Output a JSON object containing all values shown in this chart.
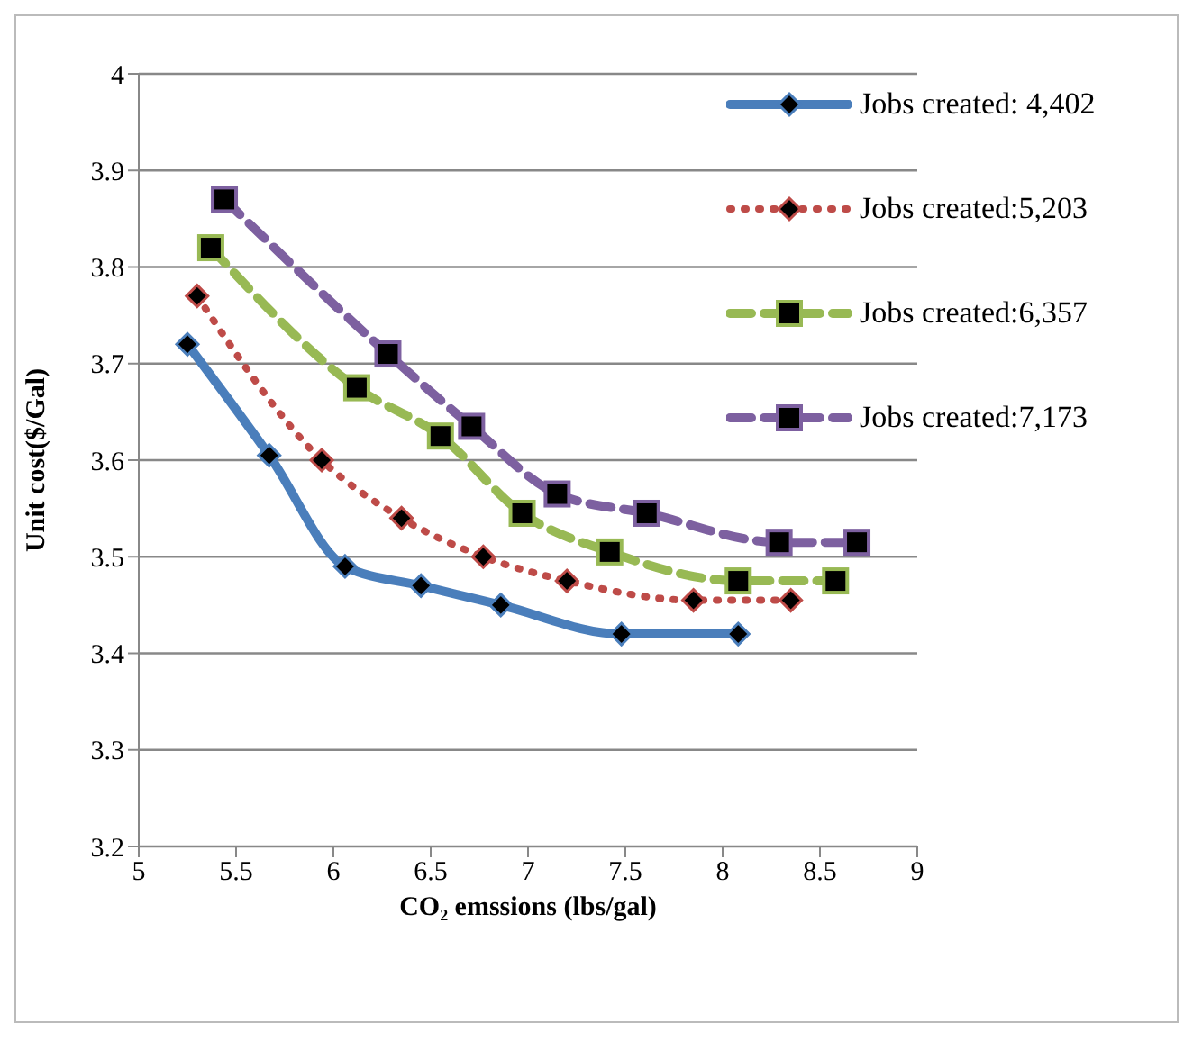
{
  "chart_data": {
    "type": "line",
    "xlabel": "CO₂ emssions (lbs/gal)",
    "ylabel": "Unit cost($/Gal)",
    "xlim": [
      5,
      9
    ],
    "xticks": [
      5,
      5.5,
      6,
      6.5,
      7,
      7.5,
      8,
      8.5,
      9
    ],
    "ylim": [
      3.2,
      4
    ],
    "yticks": [
      3.2,
      3.3,
      3.4,
      3.5,
      3.6,
      3.7,
      3.8,
      3.9,
      4
    ],
    "grid": "y",
    "legend": "top right",
    "series": [
      {
        "name": "Jobs created: 4,402",
        "color": "#4a7ebb",
        "line_style": "solid",
        "marker": "diamond",
        "x": [
          5.25,
          5.67,
          6.06,
          6.45,
          6.86,
          7.48,
          8.08
        ],
        "values": [
          3.72,
          3.605,
          3.49,
          3.47,
          3.45,
          3.42,
          3.42
        ]
      },
      {
        "name": "Jobs created:5,203",
        "color": "#be4b48",
        "line_style": "dotted",
        "marker": "diamond",
        "x": [
          5.3,
          5.94,
          6.35,
          6.77,
          7.2,
          7.85,
          8.35
        ],
        "values": [
          3.77,
          3.6,
          3.54,
          3.5,
          3.475,
          3.455,
          3.455
        ]
      },
      {
        "name": "Jobs created:6,357",
        "color": "#98b954",
        "line_style": "dashed",
        "marker": "square",
        "x": [
          5.37,
          6.12,
          6.55,
          6.97,
          7.42,
          8.08,
          8.58
        ],
        "values": [
          3.82,
          3.675,
          3.625,
          3.545,
          3.505,
          3.475,
          3.475
        ]
      },
      {
        "name": "Jobs created:7,173",
        "color": "#7d60a0",
        "line_style": "dashed",
        "marker": "square",
        "x": [
          5.44,
          6.28,
          6.71,
          7.15,
          7.61,
          8.29,
          8.69
        ],
        "values": [
          3.87,
          3.71,
          3.635,
          3.565,
          3.545,
          3.515,
          3.515
        ]
      }
    ]
  }
}
